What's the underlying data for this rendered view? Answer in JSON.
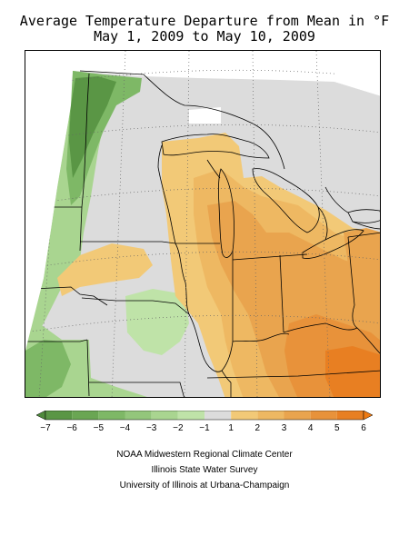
{
  "title": {
    "line1": "Average Temperature Departure from Mean in °F",
    "line2": "May 1, 2009 to May 10, 2009"
  },
  "legend": {
    "ticks": [
      "-7",
      "-6",
      "-5",
      "-4",
      "-3",
      "-2",
      "-1",
      "1",
      "2",
      "3",
      "4",
      "5",
      "6"
    ],
    "colors": {
      "below_7": "#4f8a3c",
      "-7_-6": "#5a9645",
      "-6_-5": "#6aa653",
      "-5_-4": "#7eb866",
      "-4_-3": "#93c67b",
      "-3_-2": "#a9d590",
      "-2_-1": "#bfe3a8",
      "-1_1": "#dcdcdc",
      "1_2": "#f2c977",
      "2_3": "#eeb862",
      "3_4": "#e9a44e",
      "4_5": "#e8923a",
      "5_6": "#e87f22",
      "above_6": "#ee7a12"
    }
  },
  "credits": {
    "line1": "NOAA Midwestern Regional Climate Center",
    "line2": "Illinois State Water Survey",
    "line3": "University of Illinois at Urbana-Champaign"
  }
}
